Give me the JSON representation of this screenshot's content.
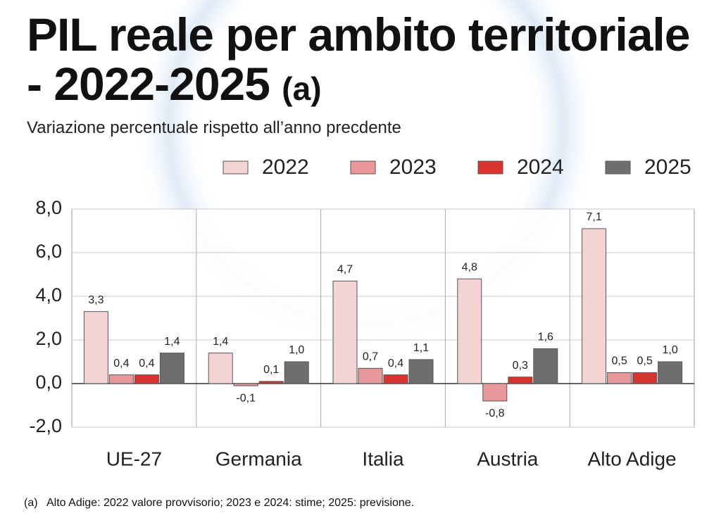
{
  "chart_data": {
    "type": "bar",
    "title": "PIL reale per ambito territoriale - 2022-2025",
    "title_note": "(a)",
    "subtitle": "Variazione percentuale rispetto all’anno precdente",
    "footnote": "(a)   Alto Adige: 2022 valore provvisorio; 2023 e 2024: stime; 2025: previsione.",
    "categories": [
      "UE-27",
      "Germania",
      "Italia",
      "Austria",
      "Alto Adige"
    ],
    "series": [
      {
        "name": "2022",
        "color": "#f4d3d5",
        "values": [
          3.3,
          1.4,
          4.7,
          4.8,
          7.1
        ],
        "value_labels": [
          "3,3",
          "1,4",
          "4,7",
          "4,8",
          "7,1"
        ]
      },
      {
        "name": "2023",
        "color": "#e9979b",
        "values": [
          0.4,
          -0.1,
          0.7,
          -0.8,
          0.5
        ],
        "value_labels": [
          "0,4",
          "-0,1",
          "0,7",
          "-0,8",
          "0,5"
        ]
      },
      {
        "name": "2024",
        "color": "#d93330",
        "values": [
          0.4,
          0.1,
          0.4,
          0.3,
          0.5
        ],
        "value_labels": [
          "0,4",
          "0,1",
          "0,4",
          "0,3",
          "0,5"
        ]
      },
      {
        "name": "2025",
        "color": "#6e6e6e",
        "values": [
          1.4,
          1.0,
          1.1,
          1.6,
          1.0
        ],
        "value_labels": [
          "1,4",
          "1,0",
          "1,1",
          "1,6",
          "1,0"
        ]
      }
    ],
    "ylim": [
      -2,
      8
    ],
    "yticks": [
      {
        "value": -2,
        "label": "-2,0"
      },
      {
        "value": 0,
        "label": "0,0"
      },
      {
        "value": 2,
        "label": "2,0"
      },
      {
        "value": 4,
        "label": "4,0"
      },
      {
        "value": 6,
        "label": "6,0"
      },
      {
        "value": 8,
        "label": "8,0"
      }
    ],
    "grid": true,
    "legend": "top"
  }
}
